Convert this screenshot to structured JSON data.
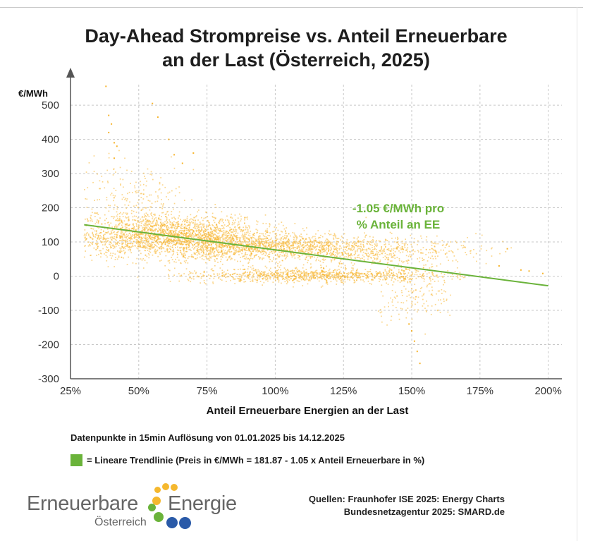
{
  "chart_data": {
    "type": "scatter",
    "title": [
      "Day-Ahead Strompreise vs. Anteil Erneuerbare",
      "an der Last (Österreich, 2025)"
    ],
    "xlabel": "Anteil Erneuerbare Energien an der Last",
    "ylabel": "€/MWh",
    "xlim": [
      25,
      205
    ],
    "ylim": [
      -300,
      560
    ],
    "x_ticks": [
      25,
      50,
      75,
      100,
      125,
      150,
      175,
      200
    ],
    "x_tick_labels": [
      "25%",
      "50%",
      "75%",
      "100%",
      "125%",
      "150%",
      "175%",
      "200%"
    ],
    "y_ticks": [
      -300,
      -200,
      -100,
      0,
      100,
      200,
      300,
      400,
      500
    ],
    "y_tick_labels": [
      "-300",
      "-200",
      "-100",
      "0",
      "100",
      "200",
      "300",
      "400",
      "500"
    ],
    "grid": true,
    "point_color": "#f7b42c",
    "trend_color": "#6ab33a",
    "trendline": {
      "intercept": 181.87,
      "slope": -1.05,
      "x_range": [
        30,
        200
      ],
      "annotation": [
        "-1.05 €/MWh pro",
        "% Anteil an EE"
      ]
    },
    "clusters": [
      {
        "x_mean": 60,
        "x_sd": 18,
        "x_min": 30,
        "x_max": 110,
        "y_mean": 118,
        "y_sd": 30,
        "count": 2200
      },
      {
        "x_mean": 95,
        "x_sd": 20,
        "x_min": 60,
        "x_max": 160,
        "y_mean": 86,
        "y_sd": 20,
        "count": 1400
      },
      {
        "x_mean": 135,
        "x_sd": 20,
        "x_min": 110,
        "x_max": 190,
        "y_mean": 72,
        "y_sd": 22,
        "count": 600
      },
      {
        "x_mean": 115,
        "x_sd": 25,
        "x_min": 60,
        "x_max": 170,
        "y_mean": 2,
        "y_sd": 10,
        "count": 1100
      },
      {
        "x_mean": 150,
        "x_sd": 8,
        "x_min": 135,
        "x_max": 165,
        "y_mean": -60,
        "y_sd": 35,
        "count": 140
      },
      {
        "x_mean": 47,
        "x_sd": 12,
        "x_min": 30,
        "x_max": 80,
        "y_mean": 210,
        "y_sd": 60,
        "count": 260
      }
    ],
    "outliers": [
      [
        38,
        555
      ],
      [
        39,
        470
      ],
      [
        40,
        445
      ],
      [
        41,
        390
      ],
      [
        42,
        380
      ],
      [
        39,
        420
      ],
      [
        41,
        345
      ],
      [
        55,
        505
      ],
      [
        57,
        465
      ],
      [
        61,
        400
      ],
      [
        63,
        355
      ],
      [
        66,
        330
      ],
      [
        70,
        360
      ],
      [
        150,
        -160
      ],
      [
        152,
        -220
      ],
      [
        153,
        -255
      ],
      [
        151,
        -190
      ],
      [
        149,
        -140
      ],
      [
        185,
        80
      ],
      [
        190,
        18
      ],
      [
        193,
        15
      ],
      [
        198,
        8
      ],
      [
        178,
        -5
      ],
      [
        182,
        30
      ]
    ]
  },
  "notes": {
    "data_note": "Datenpunkte in 15min Auflösung von 01.01.2025 bis 14.12.2025",
    "legend_label": "= Lineare Trendlinie (Preis in €/MWh = 181.87 - 1.05 x Anteil Erneuerbare in %)"
  },
  "logo": {
    "word1": "Erneuerbare",
    "word2": "Energie",
    "sub": "Österreich",
    "colors": {
      "text": "#666666",
      "yellow": "#f5b82e",
      "green": "#6ab33a",
      "blue": "#2a5aa8"
    }
  },
  "sources": {
    "line1": "Quellen: Fraunhofer ISE 2025: Energy Charts",
    "line2": "Bundesnetzagentur 2025: SMARD.de"
  }
}
